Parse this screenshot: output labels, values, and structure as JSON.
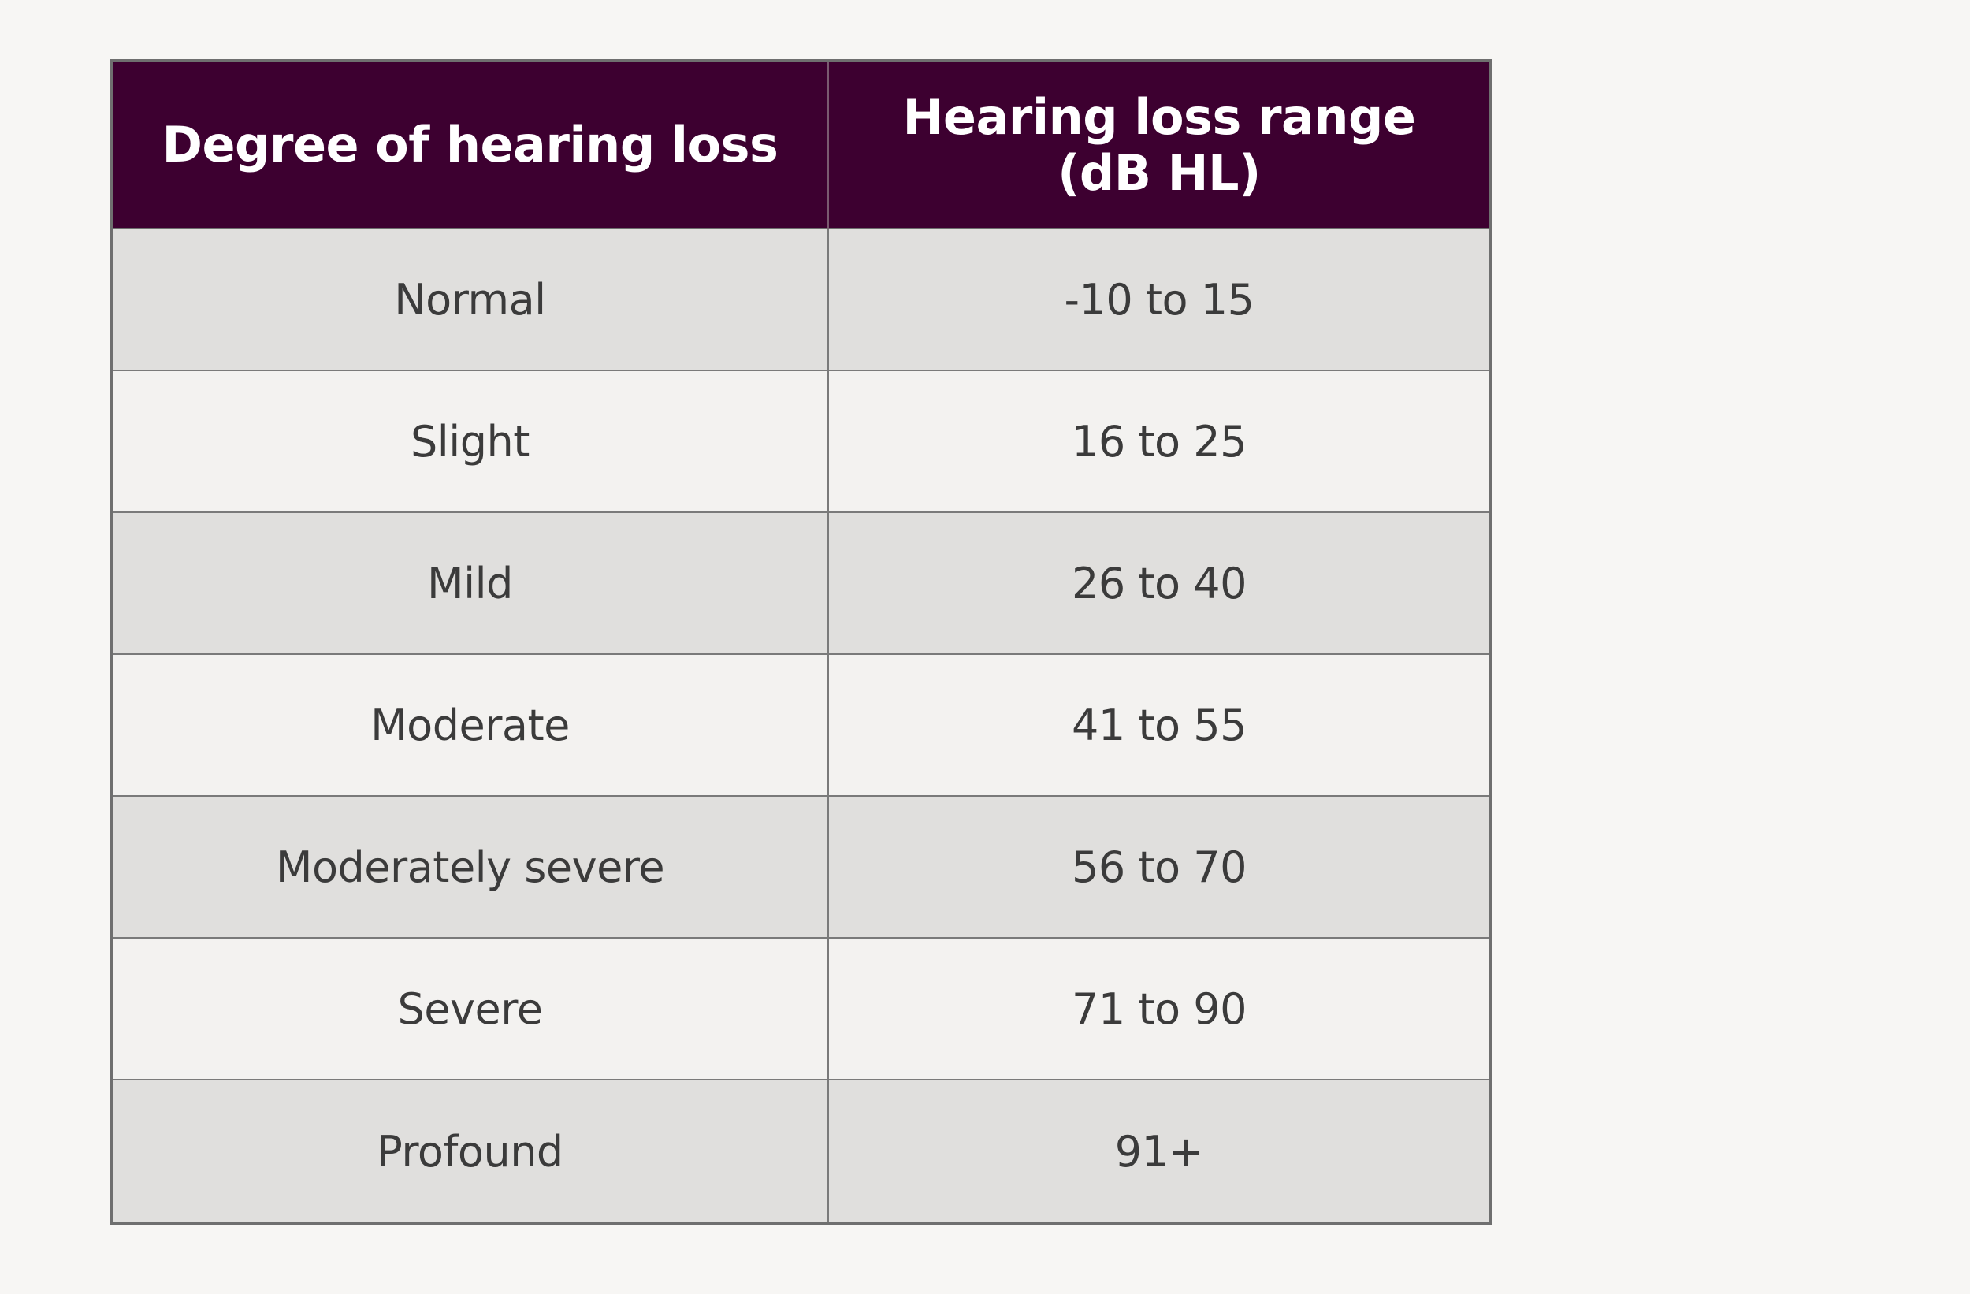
{
  "table": {
    "headers": [
      "Degree of hearing loss",
      "Hearing loss range\n(dB HL)"
    ],
    "rows": [
      [
        "Normal",
        "-10 to 15"
      ],
      [
        "Slight",
        "16 to 25"
      ],
      [
        "Mild",
        "26 to 40"
      ],
      [
        "Moderate",
        "41 to 55"
      ],
      [
        "Moderately severe",
        "56 to 70"
      ],
      [
        "Severe",
        "71 to 90"
      ],
      [
        "Profound",
        "91+"
      ]
    ]
  },
  "colors": {
    "header_background": "#3d0030",
    "header_text": "#ffffff",
    "row_shaded": "#e0dfdd",
    "row_light": "#f3f2f0",
    "border": "#6f6f6f",
    "page_background": "#f7f6f4"
  }
}
